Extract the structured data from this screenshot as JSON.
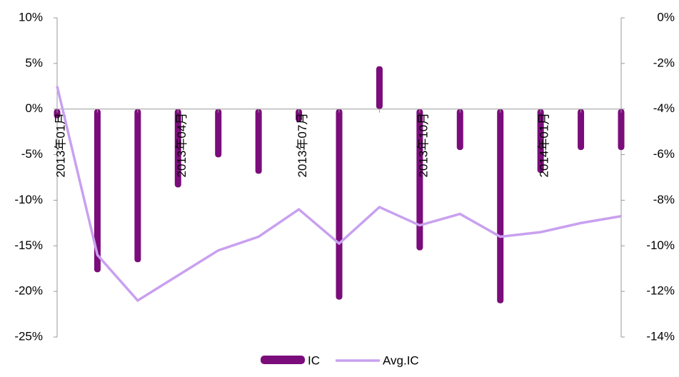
{
  "chart_data": {
    "type": "bar_line",
    "categories": [
      "2013年01月",
      null,
      null,
      "2013年04月",
      null,
      null,
      "2013年07月",
      null,
      null,
      "2013年10月",
      null,
      null,
      "2014年01月",
      null,
      null
    ],
    "series": [
      {
        "name": "IC",
        "type": "bar",
        "color": "#7b0c7b",
        "values": [
          -1.0,
          -17.9,
          -16.8,
          -8.6,
          -5.3,
          -7.1,
          -1.4,
          -20.9,
          4.7,
          -15.5,
          -4.5,
          -21.3,
          -7.0,
          -4.5,
          -4.5
        ]
      },
      {
        "name": "Avg.IC",
        "type": "line",
        "axis": "y2",
        "color": "#c9a0f0",
        "values": [
          -3.0,
          -10.4,
          -12.4,
          -11.3,
          -10.2,
          -9.6,
          -8.4,
          -9.9,
          -8.3,
          -9.1,
          -8.6,
          -9.6,
          -9.4,
          -9.0,
          -8.7
        ]
      }
    ],
    "ylim": [
      -25,
      10
    ],
    "yticks": [
      {
        "value": -25,
        "label": "-25%"
      },
      {
        "value": -20,
        "label": "-20%"
      },
      {
        "value": -15,
        "label": "-15%"
      },
      {
        "value": -10,
        "label": "-10%"
      },
      {
        "value": -5,
        "label": "-5%"
      },
      {
        "value": 0,
        "label": "0%"
      },
      {
        "value": 5,
        "label": "5%"
      },
      {
        "value": 10,
        "label": "10%"
      }
    ],
    "y2lim": [
      -14,
      0
    ],
    "y2ticks": [
      {
        "value": -14,
        "label": "-14%"
      },
      {
        "value": -12,
        "label": "-12%"
      },
      {
        "value": -10,
        "label": "-10%"
      },
      {
        "value": -8,
        "label": "-8%"
      },
      {
        "value": -6,
        "label": "-6%"
      },
      {
        "value": -4,
        "label": "-4%"
      },
      {
        "value": -2,
        "label": "-2%"
      },
      {
        "value": 0,
        "label": "0%"
      }
    ],
    "legend": "bottom"
  }
}
